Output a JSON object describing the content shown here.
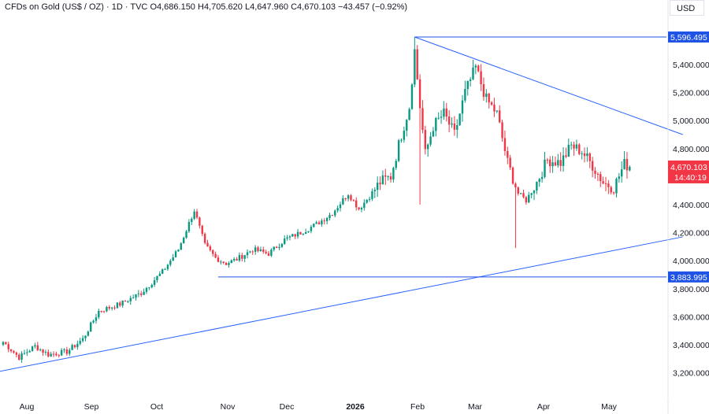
{
  "header": {
    "symbol": "CFDs on Gold (US$ / OZ)",
    "interval": "1D",
    "source": "TVC",
    "open": "O4,686.150",
    "high": "H4,705.620",
    "low": "L4,647.960",
    "close": "C4,670.103",
    "change": "−43.457 (−0.92%)"
  },
  "currency_button": "USD",
  "colors": {
    "up": "#089981",
    "down": "#f23645",
    "line": "#2962ff",
    "hline": "#1e53e5",
    "price_badge": "#f23645"
  },
  "chart_data": {
    "type": "candlestick",
    "y_axis": {
      "ticks": [
        "5,400.000",
        "5,200.000",
        "5,000.000",
        "4,800.000",
        "4,600.000",
        "4,400.000",
        "4,200.000",
        "4,000.000",
        "3,800.000",
        "3,600.000",
        "3,400.000",
        "3,200.000"
      ],
      "tick_values": [
        5400,
        5200,
        5000,
        4800,
        4600,
        4400,
        4200,
        4000,
        3800,
        3600,
        3400,
        3200
      ]
    },
    "x_axis": {
      "labels": [
        "Aug",
        "Sep",
        "Oct",
        "Nov",
        "Dec",
        "2026",
        "Feb",
        "Mar",
        "Apr",
        "May"
      ]
    },
    "price_labels": {
      "high_line": "5,596.495",
      "low_line": "3,883.995",
      "current_price": "4,670.103",
      "countdown": "14:40:19"
    },
    "anchor_closes": [
      {
        "d": 0,
        "c": 3420
      },
      {
        "d": 6,
        "c": 3310
      },
      {
        "d": 12,
        "c": 3390
      },
      {
        "d": 17,
        "c": 3330
      },
      {
        "d": 24,
        "c": 3350
      },
      {
        "d": 30,
        "c": 3440
      },
      {
        "d": 36,
        "c": 3640
      },
      {
        "d": 44,
        "c": 3690
      },
      {
        "d": 52,
        "c": 3770
      },
      {
        "d": 60,
        "c": 3920
      },
      {
        "d": 66,
        "c": 4080
      },
      {
        "d": 72,
        "c": 4360
      },
      {
        "d": 76,
        "c": 4110
      },
      {
        "d": 80,
        "c": 4020
      },
      {
        "d": 84,
        "c": 3980
      },
      {
        "d": 88,
        "c": 4010
      },
      {
        "d": 94,
        "c": 4080
      },
      {
        "d": 100,
        "c": 4050
      },
      {
        "d": 106,
        "c": 4150
      },
      {
        "d": 112,
        "c": 4200
      },
      {
        "d": 118,
        "c": 4260
      },
      {
        "d": 124,
        "c": 4340
      },
      {
        "d": 130,
        "c": 4480
      },
      {
        "d": 134,
        "c": 4370
      },
      {
        "d": 138,
        "c": 4460
      },
      {
        "d": 142,
        "c": 4560
      },
      {
        "d": 146,
        "c": 4600
      },
      {
        "d": 150,
        "c": 4900
      },
      {
        "d": 153,
        "c": 5100
      },
      {
        "d": 155,
        "c": 5500
      },
      {
        "d": 157,
        "c": 5100
      },
      {
        "d": 159,
        "c": 4760
      },
      {
        "d": 162,
        "c": 4960
      },
      {
        "d": 166,
        "c": 5050
      },
      {
        "d": 170,
        "c": 4900
      },
      {
        "d": 174,
        "c": 5200
      },
      {
        "d": 178,
        "c": 5380
      },
      {
        "d": 182,
        "c": 5150
      },
      {
        "d": 186,
        "c": 5050
      },
      {
        "d": 190,
        "c": 4700
      },
      {
        "d": 194,
        "c": 4480
      },
      {
        "d": 197,
        "c": 4430
      },
      {
        "d": 201,
        "c": 4560
      },
      {
        "d": 205,
        "c": 4720
      },
      {
        "d": 210,
        "c": 4700
      },
      {
        "d": 214,
        "c": 4820
      },
      {
        "d": 218,
        "c": 4780
      },
      {
        "d": 222,
        "c": 4680
      },
      {
        "d": 226,
        "c": 4560
      },
      {
        "d": 230,
        "c": 4520
      },
      {
        "d": 234,
        "c": 4690
      },
      {
        "d": 236,
        "c": 4670
      }
    ],
    "spikes": [
      {
        "d": 157,
        "low": 4400
      },
      {
        "d": 193,
        "low": 4090
      },
      {
        "d": 155,
        "high": 5596.495
      }
    ],
    "trendlines": [
      {
        "from": {
          "d": 155,
          "p": 5596.495
        },
        "to": {
          "d": 256,
          "p": 4900
        }
      },
      {
        "from": {
          "d": -4,
          "p": 3200
        },
        "to": {
          "d": 256,
          "p": 4170
        }
      }
    ],
    "hlines": [
      {
        "from_d": 155,
        "p": 5596.495
      },
      {
        "from_d": 81,
        "p": 3883.995
      }
    ],
    "grid": false,
    "legend": "none"
  }
}
